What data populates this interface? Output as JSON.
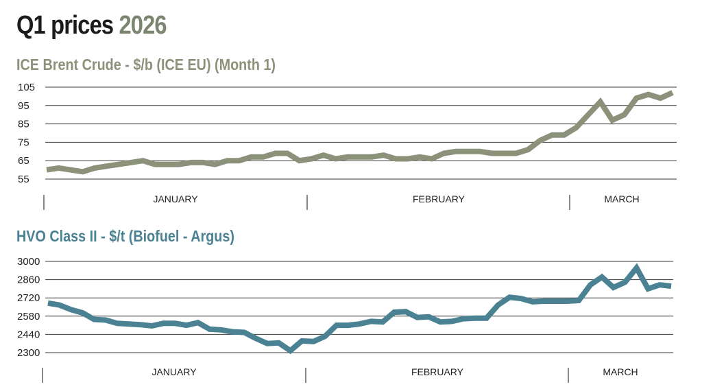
{
  "page": {
    "title_part1": "Q1 prices",
    "title_part2": "2026"
  },
  "colors": {
    "brent_line": "#8c917a",
    "hvo_line": "#4a8193",
    "grid": "#3a3a3a",
    "title_dark": "#1b1b1b",
    "title_accent": "#7b8670"
  },
  "chart_data": [
    {
      "type": "line",
      "title": "ICE Brent Crude - $/b (ICE EU) (Month 1)",
      "xlabel": "",
      "ylabel": "",
      "ylim": [
        55,
        105
      ],
      "yticks": [
        105,
        95,
        85,
        75,
        65,
        55
      ],
      "grid": true,
      "months": [
        "JANUARY",
        "FEBRUARY",
        "MARCH"
      ],
      "series": [
        {
          "values": [
            60,
            61,
            60,
            59,
            61,
            62,
            63,
            64,
            65,
            63,
            63,
            63,
            64,
            64,
            63,
            65,
            65,
            67,
            67,
            69,
            69,
            65,
            66,
            68,
            66,
            67,
            67,
            67,
            68,
            66,
            66,
            67,
            66,
            69,
            70,
            70,
            70,
            69,
            69,
            69,
            71,
            76,
            79,
            79,
            83,
            90,
            97,
            87,
            90,
            99,
            101,
            99,
            102
          ]
        }
      ]
    },
    {
      "type": "line",
      "title": "HVO Class II - $/t (Biofuel - Argus)",
      "xlabel": "",
      "ylabel": "",
      "ylim": [
        2300,
        3000
      ],
      "yticks": [
        3000,
        2860,
        2720,
        2580,
        2440,
        2300
      ],
      "grid": true,
      "months": [
        "JANUARY",
        "FEBRUARY",
        "MARCH"
      ],
      "series": [
        {
          "values": [
            2680,
            2665,
            2630,
            2605,
            2555,
            2550,
            2525,
            2520,
            2515,
            2505,
            2525,
            2525,
            2510,
            2530,
            2480,
            2475,
            2460,
            2455,
            2410,
            2370,
            2375,
            2315,
            2390,
            2385,
            2425,
            2510,
            2510,
            2520,
            2540,
            2535,
            2610,
            2615,
            2570,
            2575,
            2535,
            2540,
            2560,
            2565,
            2565,
            2665,
            2725,
            2715,
            2690,
            2695,
            2695,
            2695,
            2700,
            2820,
            2880,
            2800,
            2840,
            2950,
            2790,
            2820,
            2810
          ]
        }
      ]
    }
  ]
}
